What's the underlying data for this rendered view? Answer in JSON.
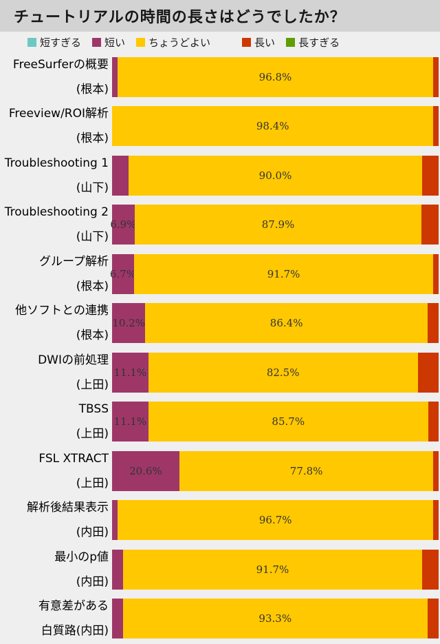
{
  "palette": {
    "too-short": "#6dc8c3",
    "short": "#9e3768",
    "just-right": "#ffc801",
    "long": "#cd3701",
    "too-long": "#609d00"
  },
  "legend": [
    {
      "id": "too-short",
      "label": "短すぎる"
    },
    {
      "id": "short",
      "label": "短い"
    },
    {
      "id": "just-right",
      "label": "ちょうどよい"
    },
    {
      "id": "long",
      "label": "長い"
    },
    {
      "id": "too-long",
      "label": "長すぎる"
    }
  ],
  "chart_data": {
    "type": "bar",
    "orientation": "horizontal",
    "stacked": true,
    "unit": "%",
    "x_range": [
      0,
      100
    ],
    "grid": false,
    "legend_position": "top",
    "title": "チュートリアルの時間の長さはどうでしたか？",
    "series_order": [
      "too-short",
      "short",
      "just-right",
      "long",
      "too-long"
    ],
    "rows": [
      {
        "label": [
          "FreeSurferの概要",
          "(根本)"
        ],
        "segments": [
          {
            "type": "short",
            "value": 1.6,
            "label": ""
          },
          {
            "type": "just-right",
            "value": 96.8,
            "label": "96.8%"
          },
          {
            "type": "long",
            "value": 1.6,
            "label": ""
          }
        ]
      },
      {
        "label": [
          "Freeview/ROI解析",
          "(根本)"
        ],
        "segments": [
          {
            "type": "just-right",
            "value": 98.4,
            "label": "98.4%"
          },
          {
            "type": "long",
            "value": 1.6,
            "label": ""
          }
        ]
      },
      {
        "label": [
          "Troubleshooting 1",
          "(山下)"
        ],
        "segments": [
          {
            "type": "short",
            "value": 5.0,
            "label": ""
          },
          {
            "type": "just-right",
            "value": 90.0,
            "label": "90.0%"
          },
          {
            "type": "long",
            "value": 5.0,
            "label": ""
          }
        ]
      },
      {
        "label": [
          "Troubleshooting 2",
          "(山下)"
        ],
        "segments": [
          {
            "type": "short",
            "value": 6.9,
            "label": "6.9%"
          },
          {
            "type": "just-right",
            "value": 87.9,
            "label": "87.9%"
          },
          {
            "type": "long",
            "value": 5.2,
            "label": ""
          }
        ]
      },
      {
        "label": [
          "グループ解析",
          "(根本)"
        ],
        "segments": [
          {
            "type": "short",
            "value": 6.7,
            "label": "6.7%"
          },
          {
            "type": "just-right",
            "value": 91.7,
            "label": "91.7%"
          },
          {
            "type": "long",
            "value": 1.6,
            "label": ""
          }
        ]
      },
      {
        "label": [
          "他ソフトとの連携",
          "(根本)"
        ],
        "segments": [
          {
            "type": "short",
            "value": 10.2,
            "label": "10.2%"
          },
          {
            "type": "just-right",
            "value": 86.4,
            "label": "86.4%"
          },
          {
            "type": "long",
            "value": 3.4,
            "label": ""
          }
        ]
      },
      {
        "label": [
          "DWIの前処理",
          "(上田)"
        ],
        "segments": [
          {
            "type": "short",
            "value": 11.1,
            "label": "11.1%"
          },
          {
            "type": "just-right",
            "value": 82.5,
            "label": "82.5%"
          },
          {
            "type": "long",
            "value": 6.4,
            "label": ""
          }
        ]
      },
      {
        "label": [
          "TBSS",
          "(上田)"
        ],
        "segments": [
          {
            "type": "short",
            "value": 11.1,
            "label": "11.1%"
          },
          {
            "type": "just-right",
            "value": 85.7,
            "label": "85.7%"
          },
          {
            "type": "long",
            "value": 3.2,
            "label": ""
          }
        ]
      },
      {
        "label": [
          "FSL XTRACT",
          "(上田)"
        ],
        "segments": [
          {
            "type": "short",
            "value": 20.6,
            "label": "20.6%"
          },
          {
            "type": "just-right",
            "value": 77.8,
            "label": "77.8%"
          },
          {
            "type": "long",
            "value": 1.6,
            "label": ""
          }
        ]
      },
      {
        "label": [
          "解析後結果表示",
          "(内田)"
        ],
        "segments": [
          {
            "type": "short",
            "value": 1.7,
            "label": ""
          },
          {
            "type": "just-right",
            "value": 96.7,
            "label": "96.7%"
          },
          {
            "type": "long",
            "value": 1.6,
            "label": ""
          }
        ]
      },
      {
        "label": [
          "最小のp値",
          "(内田)"
        ],
        "segments": [
          {
            "type": "short",
            "value": 3.3,
            "label": ""
          },
          {
            "type": "just-right",
            "value": 91.7,
            "label": "91.7%"
          },
          {
            "type": "long",
            "value": 5.0,
            "label": ""
          }
        ]
      },
      {
        "label": [
          "有意差がある",
          "白質路(内田)"
        ],
        "segments": [
          {
            "type": "short",
            "value": 3.3,
            "label": ""
          },
          {
            "type": "just-right",
            "value": 93.3,
            "label": "93.3%"
          },
          {
            "type": "long",
            "value": 3.4,
            "label": ""
          }
        ]
      }
    ]
  }
}
